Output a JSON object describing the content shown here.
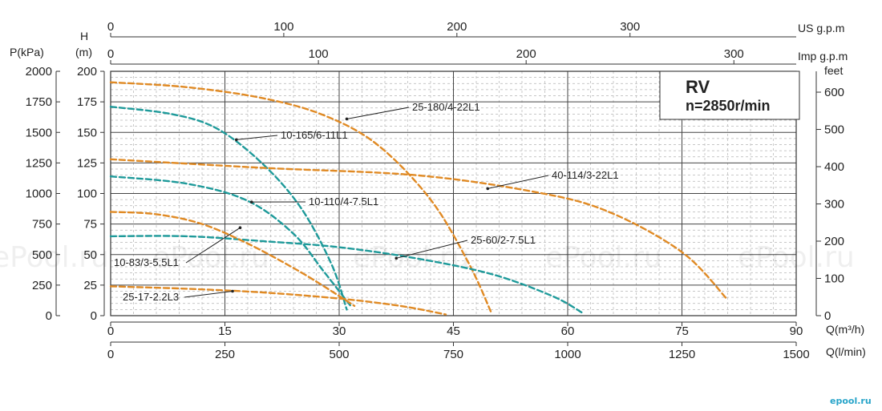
{
  "chart_data": {
    "type": "line",
    "title": "RV",
    "subtitle": "n=2850r/min",
    "axes": {
      "x_bottom_1": {
        "label": "Q(m³/h)",
        "ticks": [
          "0",
          "15",
          "30",
          "45",
          "60",
          "75",
          "90"
        ],
        "range": [
          0,
          90
        ]
      },
      "x_bottom_2": {
        "label": "Q(l/min)",
        "ticks": [
          "0",
          "250",
          "500",
          "750",
          "1000",
          "1250",
          "1500"
        ],
        "range": [
          0,
          1500
        ]
      },
      "x_top_1": {
        "label": "US g.p.m",
        "ticks": [
          "0",
          "100",
          "200",
          "300"
        ],
        "range": [
          0,
          396
        ]
      },
      "x_top_2": {
        "label": "Imp g.p.m",
        "ticks": [
          "0",
          "100",
          "200",
          "300"
        ],
        "range": [
          0,
          330
        ]
      },
      "y_left_pressure": {
        "label": "P(kPa)",
        "ticks": [
          "0",
          "250",
          "500",
          "750",
          "1000",
          "1250",
          "1500",
          "1750",
          "2000"
        ],
        "range": [
          0,
          2000
        ]
      },
      "y_left_head": {
        "label": "H\n(m)",
        "label_top": "H",
        "label_bottom": "(m)",
        "ticks": [
          "0",
          "25",
          "50",
          "75",
          "100",
          "125",
          "150",
          "175",
          "200"
        ],
        "range": [
          0,
          200
        ]
      },
      "y_right_feet": {
        "label": "feet",
        "ticks": [
          "0",
          "100",
          "200",
          "300",
          "400",
          "500",
          "600"
        ],
        "range": [
          0,
          656
        ]
      }
    },
    "grid": true,
    "series": [
      {
        "name": "25-180/4-22L1",
        "color": "#E08A24",
        "x": [
          0,
          10,
          20,
          28,
          35,
          42,
          47,
          50
        ],
        "y": [
          191,
          187,
          178,
          164,
          140,
          95,
          43,
          2
        ]
      },
      {
        "name": "10-165/6-11L1",
        "color": "#1E9A9A",
        "x": [
          0,
          8,
          14,
          20,
          25,
          29,
          31
        ],
        "y": [
          171,
          165,
          153,
          124,
          88,
          42,
          5
        ]
      },
      {
        "name": "40-114/3-22L1",
        "color": "#E08A24",
        "x": [
          0,
          20,
          40,
          55,
          65,
          75,
          81
        ],
        "y": [
          128,
          121,
          115,
          102,
          86,
          52,
          13
        ]
      },
      {
        "name": "10-110/4-7.5L1",
        "color": "#1E9A9A",
        "x": [
          0,
          10,
          18,
          24,
          28,
          31.5
        ],
        "y": [
          114,
          108,
          94,
          67,
          36,
          8
        ]
      },
      {
        "name": "25-60/2-7.5L1",
        "color": "#1E9A9A",
        "x": [
          0,
          10,
          20,
          30,
          40,
          50,
          58,
          62
        ],
        "y": [
          65,
          65,
          61,
          56,
          47,
          34,
          16,
          2
        ]
      },
      {
        "name": "10-83/3-5.5L1",
        "color": "#E08A24",
        "x": [
          0,
          6,
          12,
          18,
          24,
          28,
          32
        ],
        "y": [
          85,
          83,
          75,
          59,
          39,
          24,
          8
        ]
      },
      {
        "name": "25-17-2.2L3",
        "color": "#E08A24",
        "x": [
          0,
          10,
          20,
          30,
          38,
          44
        ],
        "y": [
          24,
          22,
          19,
          14,
          8,
          1
        ]
      }
    ],
    "annotations": [
      {
        "text": "25-180/4-22L1",
        "series": "25-180/4-22L1",
        "point": [
          31,
          161
        ]
      },
      {
        "text": "10-165/6-11L1",
        "series": "10-165/6-11L1",
        "point": [
          16.5,
          144
        ]
      },
      {
        "text": "40-114/3-22L1",
        "series": "40-114/3-22L1",
        "point": [
          49.5,
          104
        ]
      },
      {
        "text": "10-110/4-7.5L1",
        "series": "10-110/4-7.5L1",
        "point": [
          18.5,
          93
        ]
      },
      {
        "text": "25-60/2-7.5L1",
        "series": "25-60/2-7.5L1",
        "point": [
          37.5,
          47
        ]
      },
      {
        "text": "10-83/3-5.5L1",
        "series": "10-83/3-5.5L1",
        "point": [
          17,
          72
        ]
      },
      {
        "text": "25-17-2.2L3",
        "series": "25-17-2.2L3",
        "point": [
          16,
          20
        ]
      }
    ]
  },
  "watermark": "ePool.ru",
  "logo_text": "epool.ru"
}
